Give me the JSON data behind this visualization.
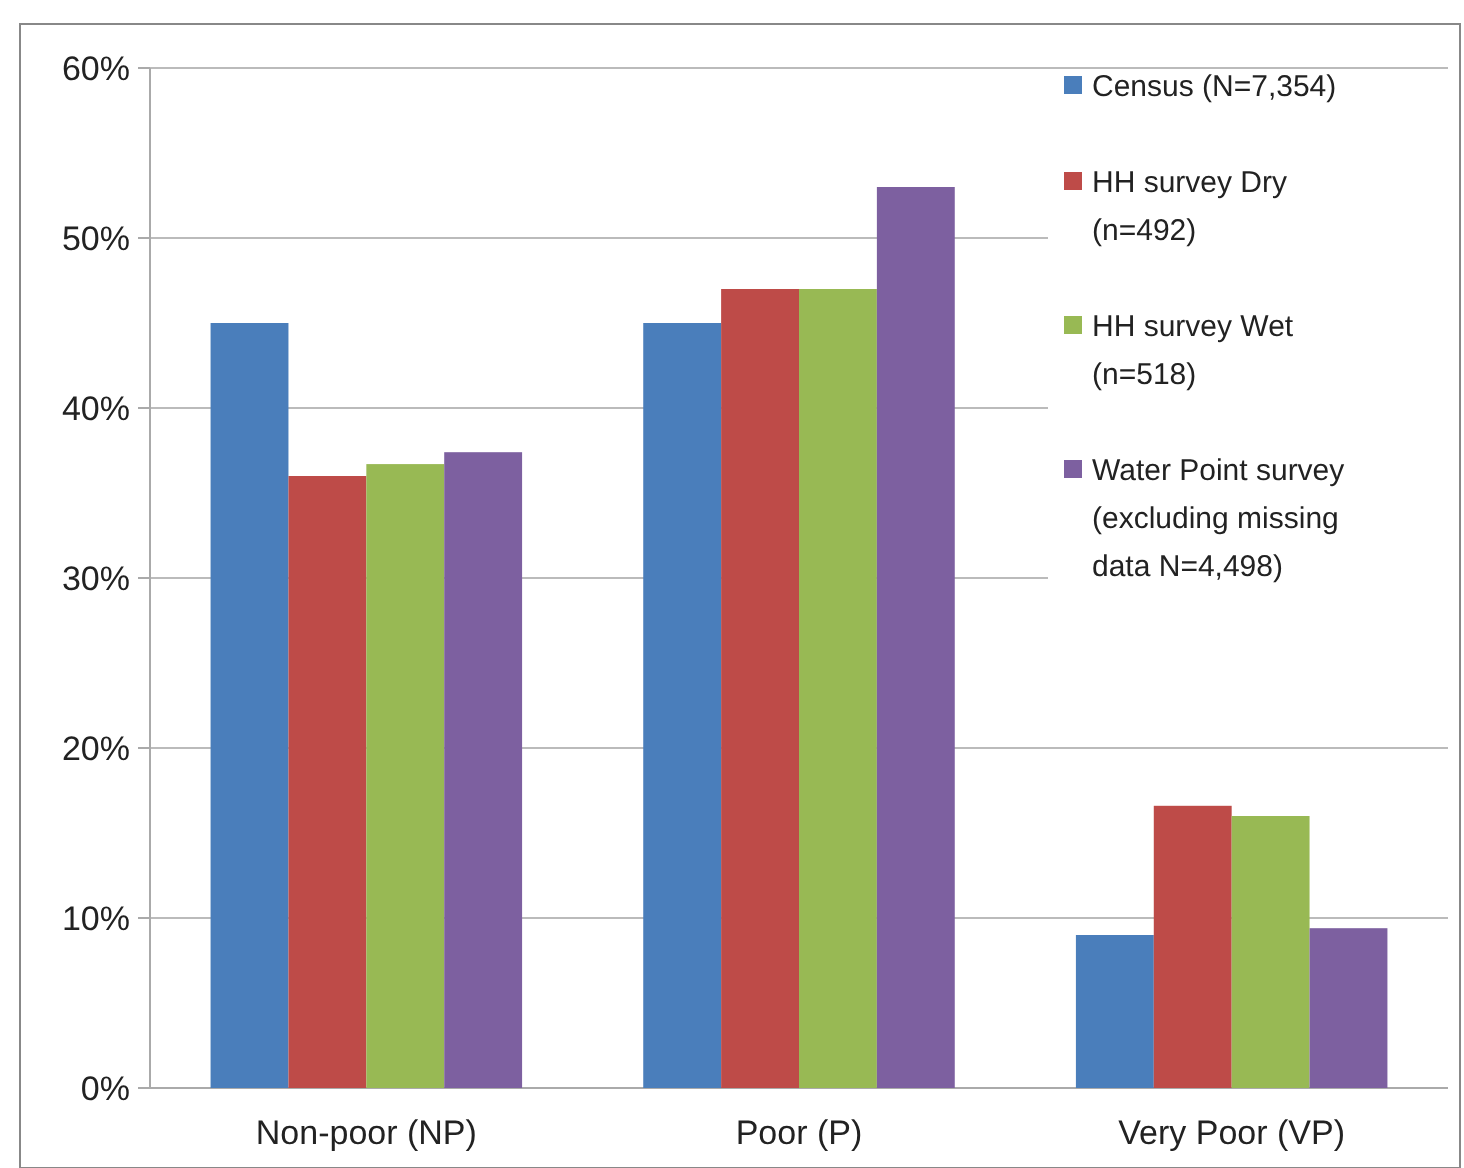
{
  "chart_data": {
    "type": "bar",
    "categories": [
      "Non-poor (NP)",
      "Poor (P)",
      "Very Poor (VP)"
    ],
    "series": [
      {
        "name": "Census (N=7,354)",
        "color": "#4a7ebb",
        "values": [
          45,
          45,
          9
        ]
      },
      {
        "name": "HH survey Dry (n=492)",
        "color": "#be4b48",
        "values": [
          36,
          47,
          16.6
        ]
      },
      {
        "name": "HH survey Wet (n=518)",
        "color": "#98b954",
        "values": [
          36.7,
          47,
          16
        ]
      },
      {
        "name": "Water Point survey (excluding missing data N=4,498)",
        "color": "#7d60a0",
        "values": [
          37.4,
          53,
          9.4
        ]
      }
    ],
    "ylim": [
      0,
      60
    ],
    "yticks": [
      {
        "value": 0,
        "label": "0%"
      },
      {
        "value": 10,
        "label": "10%"
      },
      {
        "value": 20,
        "label": "20%"
      },
      {
        "value": 30,
        "label": "30%"
      },
      {
        "value": 40,
        "label": "40%"
      },
      {
        "value": 50,
        "label": "50%"
      },
      {
        "value": 60,
        "label": "60%"
      }
    ],
    "grid": "y",
    "legend": "top right"
  }
}
